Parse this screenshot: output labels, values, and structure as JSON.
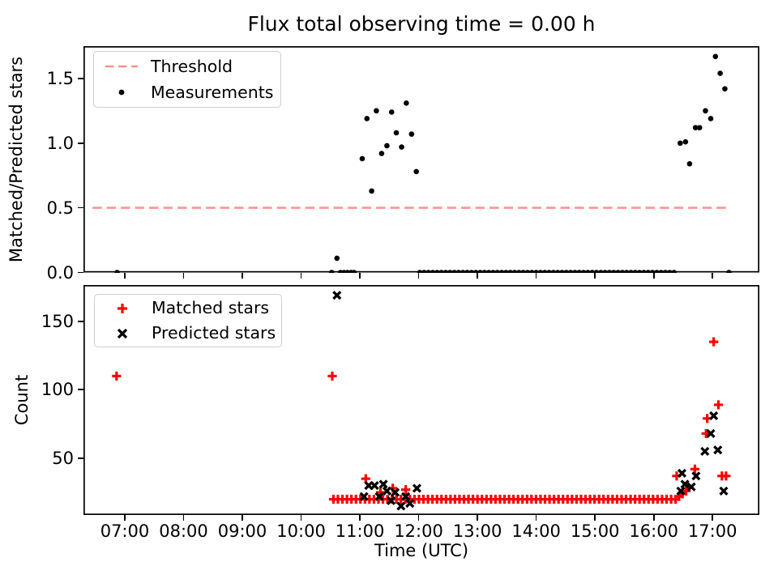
{
  "figure_title": "Flux total observing time = 0.00 h",
  "colors": {
    "threshold": "#ff9090",
    "measurements": "#000000",
    "matched": "#ff0000",
    "predicted": "#000000",
    "spine": "#000000"
  },
  "chart_data": {
    "type": "scatter",
    "title": "Flux total observing time = 0.00 h",
    "x_axis": {
      "label": "Time (UTC)",
      "xlim_hours": [
        6.297,
        17.797
      ],
      "ticks": [
        {
          "hour": 7,
          "label": "07:00"
        },
        {
          "hour": 8,
          "label": "08:00"
        },
        {
          "hour": 9,
          "label": "09:00"
        },
        {
          "hour": 10,
          "label": "10:00"
        },
        {
          "hour": 11,
          "label": "11:00"
        },
        {
          "hour": 12,
          "label": "12:00"
        },
        {
          "hour": 13,
          "label": "13:00"
        },
        {
          "hour": 14,
          "label": "14:00"
        },
        {
          "hour": 15,
          "label": "15:00"
        },
        {
          "hour": 16,
          "label": "16:00"
        },
        {
          "hour": 17,
          "label": "17:00"
        }
      ]
    },
    "panels": [
      {
        "ylabel": "Matched/Predicted stars",
        "ylim": [
          0,
          1.75
        ],
        "yticks": [
          {
            "value": 0.0,
            "label": "0.0"
          },
          {
            "value": 0.5,
            "label": "0.5"
          },
          {
            "value": 1.0,
            "label": "1.0"
          },
          {
            "value": 1.5,
            "label": "1.5"
          }
        ],
        "legend": [
          {
            "label": "Threshold",
            "marker": "dashed-line",
            "color": "#ff9090"
          },
          {
            "label": "Measurements",
            "marker": "dot",
            "color": "#000000"
          }
        ],
        "series": [
          {
            "name": "Threshold",
            "kind": "hline",
            "y": 0.5,
            "x_start_hour": 6.45,
            "x_end_hour": 17.3,
            "color": "#ff9090",
            "dash": [
              11.5,
              6
            ],
            "linewidth": 2.5
          },
          {
            "name": "Measurements",
            "kind": "scatter",
            "marker": "dot",
            "color": "#000000",
            "points": [
              [
                6.87,
                0
              ],
              [
                10.52,
                0
              ],
              [
                10.61,
                0.11
              ],
              [
                10.67,
                0
              ],
              [
                10.73,
                0
              ],
              [
                10.79,
                0
              ],
              [
                10.85,
                0
              ],
              [
                10.9,
                0
              ],
              [
                11.04,
                0.88
              ],
              [
                11.12,
                1.19
              ],
              [
                11.2,
                0.63
              ],
              [
                11.28,
                1.25
              ],
              [
                11.37,
                0.92
              ],
              [
                11.46,
                0.98
              ],
              [
                11.54,
                1.24
              ],
              [
                11.62,
                1.08
              ],
              [
                11.71,
                0.97
              ],
              [
                11.79,
                1.31
              ],
              [
                11.88,
                1.07
              ],
              [
                11.96,
                0.78
              ],
              [
                16.45,
                1.0
              ],
              [
                16.54,
                1.01
              ],
              [
                16.61,
                0.84
              ],
              [
                16.71,
                1.12
              ],
              [
                16.78,
                1.12
              ],
              [
                16.88,
                1.25
              ],
              [
                16.97,
                1.19
              ],
              [
                17.05,
                1.67
              ],
              [
                17.13,
                1.54
              ],
              [
                17.21,
                1.42
              ],
              [
                17.28,
                0
              ]
            ],
            "runs": [
              {
                "t0": 12.02,
                "t1": 16.39,
                "dt": 0.0733,
                "y": 0
              }
            ]
          }
        ]
      },
      {
        "ylabel": "Count",
        "ylim": [
          8.5,
          176.5
        ],
        "yticks": [
          {
            "value": 50,
            "label": "50"
          },
          {
            "value": 100,
            "label": "100"
          },
          {
            "value": 150,
            "label": "150"
          }
        ],
        "legend": [
          {
            "label": "Matched stars",
            "marker": "plus",
            "color": "#ff0000"
          },
          {
            "label": "Predicted stars",
            "marker": "x",
            "color": "#000000"
          }
        ],
        "series": [
          {
            "name": "Matched stars",
            "kind": "scatter",
            "marker": "plus",
            "color": "#ff0000",
            "points": [
              [
                6.86,
                110
              ],
              [
                10.53,
                110
              ],
              [
                11.1,
                35
              ],
              [
                11.35,
                25
              ],
              [
                11.56,
                28
              ],
              [
                11.78,
                27
              ],
              [
                16.43,
                22
              ],
              [
                16.49,
                24
              ],
              [
                16.55,
                26
              ],
              [
                16.39,
                37
              ],
              [
                16.7,
                42
              ],
              [
                16.89,
                68
              ],
              [
                16.91,
                79
              ],
              [
                17.02,
                135
              ],
              [
                17.1,
                89
              ],
              [
                17.16,
                37
              ],
              [
                17.23,
                37
              ]
            ],
            "runs": [
              {
                "t0": 10.55,
                "t1": 16.38,
                "dt": 0.0766,
                "y": 20
              }
            ]
          },
          {
            "name": "Predicted stars",
            "kind": "scatter",
            "marker": "x",
            "color": "#000000",
            "points": [
              [
                10.61,
                169
              ],
              [
                11.07,
                22
              ],
              [
                11.15,
                30
              ],
              [
                11.25,
                30
              ],
              [
                11.33,
                22
              ],
              [
                11.4,
                31
              ],
              [
                11.46,
                26
              ],
              [
                11.53,
                19
              ],
              [
                11.6,
                25
              ],
              [
                11.7,
                15
              ],
              [
                11.78,
                22
              ],
              [
                11.85,
                17
              ],
              [
                11.97,
                28
              ],
              [
                16.46,
                26
              ],
              [
                16.48,
                39
              ],
              [
                16.53,
                31
              ],
              [
                16.64,
                29
              ],
              [
                16.72,
                37
              ],
              [
                16.87,
                55
              ],
              [
                16.97,
                68
              ],
              [
                17.02,
                81
              ],
              [
                17.09,
                56
              ],
              [
                17.19,
                26
              ]
            ]
          }
        ]
      }
    ]
  }
}
